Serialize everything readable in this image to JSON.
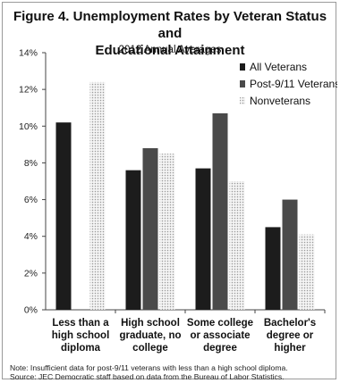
{
  "header": {
    "title_line1": "Figure 4. Unemployment Rates by Veteran Status and",
    "title_line2": "Educational Attainment",
    "subtitle": "2012 Annual Averages"
  },
  "footer": {
    "note": "Note: Insufficient data for post-9/11 veterans with less than a high school diploma.",
    "source": "Source: JEC Democratic staff based on data from the Bureau of Labor Statistics."
  },
  "chart_data": {
    "type": "bar",
    "title": "Figure 4. Unemployment Rates by Veteran Status and Educational Attainment",
    "subtitle": "2012 Annual Averages",
    "xlabel": "",
    "ylabel": "",
    "ylim": [
      0,
      14
    ],
    "yticks": [
      0,
      2,
      4,
      6,
      8,
      10,
      12,
      14
    ],
    "ytick_labels": [
      "0%",
      "2%",
      "4%",
      "6%",
      "8%",
      "10%",
      "12%",
      "14%"
    ],
    "grid": false,
    "legend_position": "top-right",
    "categories": [
      [
        "Less than a",
        "high school",
        "diploma"
      ],
      [
        "High school",
        "graduate, no",
        "college"
      ],
      [
        "Some college",
        "or associate",
        "degree"
      ],
      [
        "Bachelor's",
        "degree or",
        "higher"
      ]
    ],
    "series": [
      {
        "name": "All Veterans",
        "values": [
          10.2,
          7.6,
          7.7,
          4.5
        ],
        "color": "#1c1c1c",
        "pattern": "solid"
      },
      {
        "name": "Post-9/11 Veterans",
        "values": [
          null,
          8.8,
          10.7,
          6.0
        ],
        "color": "#4a4a4a",
        "pattern": "solid"
      },
      {
        "name": "Nonveterans",
        "values": [
          12.4,
          8.5,
          7.0,
          4.1
        ],
        "color": "#e2e2e2",
        "pattern": "dotted"
      }
    ]
  }
}
